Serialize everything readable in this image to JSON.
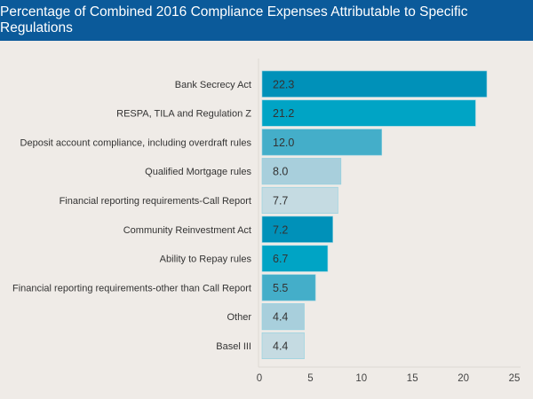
{
  "chart_data": {
    "type": "bar",
    "orientation": "horizontal",
    "title": "Percentage of Combined 2016 Compliance Expenses Attributable to Specific Regulations",
    "categories": [
      "Bank Secrecy Act",
      "RESPA, TILA and Regulation Z",
      "Deposit account compliance, including overdraft rules",
      "Qualified Mortgage rules",
      "Financial reporting requirements-Call Report",
      "Community Reinvestment Act",
      "Ability to Repay rules",
      "Financial reporting requirements-other than Call Report",
      "Other",
      "Basel III"
    ],
    "values": [
      22.3,
      21.2,
      12.0,
      8.0,
      7.7,
      7.2,
      6.7,
      5.5,
      4.4,
      4.4
    ],
    "value_labels": [
      "22.3",
      "21.2",
      "12.0",
      "8.0",
      "7.7",
      "7.2",
      "6.7",
      "5.5",
      "4.4",
      "4.4"
    ],
    "xlim": [
      0,
      25
    ],
    "xticks": [
      "0",
      "5",
      "10",
      "15",
      "20",
      "25"
    ],
    "grid": false,
    "colors": [
      "#0091b9",
      "#00a4c5",
      "#44aec9",
      "#a8cfdc",
      "#c5dbe2"
    ],
    "title_bar_color": "#0b5a9a"
  }
}
